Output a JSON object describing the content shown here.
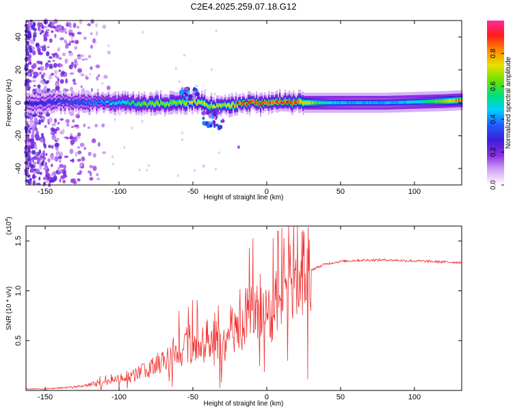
{
  "figure_title": "C2E4.2025.259.07.18.G12",
  "chart_data": [
    {
      "type": "heatmap",
      "title": "C2E4.2025.259.07.18.G12",
      "xlabel": "Height of straight line (km)",
      "ylabel": "Frequency (Hz)",
      "xlim": [
        -163,
        132
      ],
      "ylim": [
        -50,
        50
      ],
      "xticks": [
        -150,
        -100,
        -50,
        0,
        50,
        100
      ],
      "yticks": [
        -40,
        -20,
        0,
        20,
        40
      ],
      "colorbar": {
        "label": "Normalized spectral amplitude",
        "range": [
          0,
          1
        ],
        "ticks": [
          0.0,
          0.2,
          0.4,
          0.6,
          0.8
        ],
        "colormap": [
          "#ffffff",
          "#cfa8f5",
          "#8a2be2",
          "#3b1fd6",
          "#1f5cff",
          "#00d0ff",
          "#00e07a",
          "#6fe000",
          "#e8e000",
          "#ff8c00",
          "#ff1a1a",
          "#ff2a9a"
        ]
      },
      "description_series": {
        "ridge_frequency_hz": {
          "x": [
            -160,
            -140,
            -120,
            -100,
            -80,
            -60,
            -50,
            -40,
            -30,
            -20,
            -10,
            0,
            10,
            20,
            40,
            60,
            80,
            100,
            120,
            130
          ],
          "y": [
            0,
            0.5,
            0.5,
            0,
            -1,
            0,
            1,
            -2,
            -2,
            -1,
            0,
            0,
            0.5,
            0,
            0,
            0,
            0,
            0.5,
            1,
            1.5
          ]
        },
        "peak_amplitude": {
          "x": [
            -160,
            -140,
            -120,
            -100,
            -80,
            -60,
            -50,
            -40,
            -30,
            -20,
            -10,
            0,
            10,
            20,
            40,
            60,
            80,
            100,
            120,
            130
          ],
          "y": [
            0.3,
            0.35,
            0.4,
            0.5,
            0.7,
            0.7,
            0.8,
            0.75,
            0.7,
            0.9,
            0.95,
            0.95,
            0.95,
            0.9,
            0.5,
            0.45,
            0.45,
            0.5,
            0.7,
            0.9
          ]
        }
      }
    },
    {
      "type": "line",
      "xlabel": "Height of straight line (km)",
      "ylabel": "SNR (10 * v/v)",
      "y_scale_label": "(x10",
      "y_scale_exponent": "4",
      "xlim": [
        -163,
        132
      ],
      "ylim": [
        0,
        16500
      ],
      "xticks": [
        -150,
        -100,
        -50,
        0,
        50,
        100
      ],
      "yticks": [
        5000,
        10000,
        15000
      ],
      "yticklabels": [
        "0.5",
        "1.0",
        "1.5"
      ],
      "series": [
        {
          "name": "SNR",
          "color": "#f03030",
          "x": [
            -160,
            -150,
            -140,
            -130,
            -120,
            -110,
            -100,
            -90,
            -80,
            -75,
            -70,
            -65,
            -60,
            -55,
            -50,
            -45,
            -40,
            -35,
            -30,
            -25,
            -20,
            -15,
            -10,
            -5,
            0,
            3,
            6,
            8,
            10,
            15,
            20,
            25,
            30,
            40,
            50,
            60,
            80,
            100,
            120,
            130
          ],
          "y": [
            150,
            150,
            250,
            350,
            550,
            750,
            1100,
            1500,
            2200,
            2600,
            2900,
            3200,
            3700,
            4000,
            4200,
            4600,
            5000,
            5400,
            3800,
            6000,
            5200,
            7200,
            7500,
            7800,
            6900,
            7400,
            8000,
            6000,
            8800,
            10000,
            10800,
            11500,
            12100,
            12700,
            12950,
            13050,
            13100,
            13000,
            12900,
            12850
          ]
        }
      ]
    }
  ]
}
